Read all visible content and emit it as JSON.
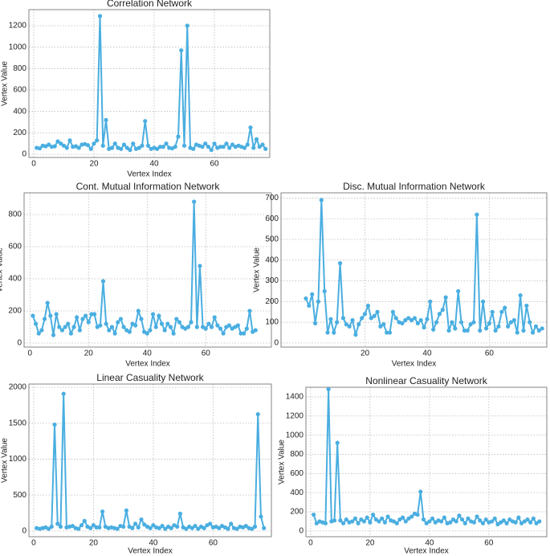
{
  "chart_data": [
    {
      "type": "line",
      "title": "Correlation Network",
      "x_label": "Vertex Index",
      "y_label": "Vertex Value",
      "color": "#4aaee0",
      "grid": true,
      "xlim": [
        -1.6,
        78.4
      ],
      "ylim": [
        -30,
        1350
      ],
      "xticks": [
        0,
        20,
        40,
        60
      ],
      "yticks": [
        0,
        200,
        400,
        600,
        800,
        1000,
        1200
      ],
      "x": [
        1,
        2,
        3,
        4,
        5,
        6,
        7,
        8,
        9,
        10,
        11,
        12,
        13,
        14,
        15,
        16,
        17,
        18,
        19,
        20,
        21,
        22,
        23,
        24,
        25,
        26,
        27,
        28,
        29,
        30,
        31,
        32,
        33,
        34,
        35,
        36,
        37,
        38,
        39,
        40,
        41,
        42,
        43,
        44,
        45,
        46,
        47,
        48,
        49,
        50,
        51,
        52,
        53,
        54,
        55,
        56,
        57,
        58,
        59,
        60,
        61,
        62,
        63,
        64,
        65,
        66,
        67,
        68,
        69,
        70,
        71,
        72,
        73,
        74,
        75,
        76,
        77
      ],
      "values": [
        60,
        55,
        80,
        75,
        90,
        70,
        75,
        120,
        100,
        80,
        60,
        130,
        70,
        75,
        60,
        90,
        95,
        85,
        50,
        100,
        130,
        1290,
        80,
        320,
        50,
        60,
        100,
        60,
        50,
        90,
        60,
        40,
        100,
        50,
        60,
        80,
        310,
        80,
        50,
        60,
        50,
        70,
        70,
        100,
        60,
        55,
        70,
        165,
        970,
        80,
        1200,
        60,
        50,
        90,
        80,
        70,
        100,
        70,
        40,
        100,
        60,
        70,
        70,
        100,
        60,
        90,
        70,
        80,
        70,
        60,
        90,
        250,
        60,
        140,
        70,
        90,
        50
      ]
    },
    {
      "type": "line",
      "title": "Cont. Mutual Information Network",
      "x_label": "Vertex Index",
      "y_label": "Vertex Value",
      "color": "#4aaee0",
      "grid": true,
      "xlim": [
        -2,
        82.4
      ],
      "ylim": [
        -25,
        935
      ],
      "xticks": [
        0,
        20,
        40,
        60
      ],
      "yticks": [
        0,
        200,
        400,
        600,
        800
      ],
      "x": [
        1,
        2,
        3,
        4,
        5,
        6,
        7,
        8,
        9,
        10,
        11,
        12,
        13,
        14,
        15,
        16,
        17,
        18,
        19,
        20,
        21,
        22,
        23,
        24,
        25,
        26,
        27,
        28,
        29,
        30,
        31,
        32,
        33,
        34,
        35,
        36,
        37,
        38,
        39,
        40,
        41,
        42,
        43,
        44,
        45,
        46,
        47,
        48,
        49,
        50,
        51,
        52,
        53,
        54,
        55,
        56,
        57,
        58,
        59,
        60,
        61,
        62,
        63,
        64,
        65,
        66,
        67,
        68,
        69,
        70,
        71,
        72,
        73,
        74,
        75,
        76,
        77
      ],
      "values": [
        170,
        120,
        60,
        80,
        150,
        250,
        170,
        50,
        180,
        100,
        80,
        100,
        120,
        60,
        100,
        160,
        80,
        150,
        170,
        130,
        180,
        180,
        100,
        110,
        385,
        120,
        80,
        100,
        60,
        130,
        150,
        100,
        80,
        70,
        120,
        110,
        200,
        150,
        70,
        60,
        80,
        180,
        100,
        170,
        120,
        80,
        120,
        100,
        60,
        150,
        130,
        100,
        90,
        100,
        130,
        880,
        100,
        480,
        100,
        90,
        120,
        100,
        160,
        110,
        90,
        60,
        100,
        110,
        90,
        100,
        110,
        60,
        60,
        90,
        200,
        70,
        80
      ]
    },
    {
      "type": "line",
      "title": "Disc. Mutual Information Network",
      "x_label": "Vertex Index",
      "y_label": "Vertex Value",
      "color": "#4aaee0",
      "grid": true,
      "xlim": [
        -7,
        78.5
      ],
      "ylim": [
        -20,
        725
      ],
      "xticks": [
        20,
        40,
        60
      ],
      "yticks": [
        0,
        100,
        200,
        300,
        400,
        500,
        600,
        700
      ],
      "x": [
        1,
        2,
        3,
        4,
        5,
        6,
        7,
        8,
        9,
        10,
        11,
        12,
        13,
        14,
        15,
        16,
        17,
        18,
        19,
        20,
        21,
        22,
        23,
        24,
        25,
        26,
        27,
        28,
        29,
        30,
        31,
        32,
        33,
        34,
        35,
        36,
        37,
        38,
        39,
        40,
        41,
        42,
        43,
        44,
        45,
        46,
        47,
        48,
        49,
        50,
        51,
        52,
        53,
        54,
        55,
        56,
        57,
        58,
        59,
        60,
        61,
        62,
        63,
        64,
        65,
        66,
        67,
        68,
        69,
        70,
        71,
        72,
        73,
        74,
        75,
        76,
        77
      ],
      "values": [
        215,
        180,
        235,
        95,
        200,
        690,
        250,
        50,
        115,
        50,
        100,
        385,
        120,
        90,
        80,
        110,
        40,
        90,
        120,
        140,
        180,
        120,
        130,
        150,
        80,
        90,
        50,
        50,
        150,
        120,
        100,
        95,
        110,
        120,
        110,
        120,
        95,
        110,
        75,
        115,
        200,
        65,
        100,
        140,
        160,
        220,
        60,
        100,
        70,
        250,
        100,
        60,
        60,
        90,
        100,
        620,
        60,
        200,
        70,
        95,
        150,
        60,
        80,
        150,
        170,
        80,
        100,
        110,
        50,
        230,
        60,
        180,
        100,
        50,
        80,
        60,
        70
      ]
    },
    {
      "type": "line",
      "title": "Linear Casuality Network",
      "x_label": "Vertex Index",
      "y_label": "Vertex Value",
      "color": "#4aaee0",
      "grid": true,
      "xlim": [
        -1.6,
        79.5
      ],
      "ylim": [
        -80,
        2045
      ],
      "xticks": [
        0,
        20,
        40,
        60
      ],
      "yticks": [
        0,
        500,
        1000,
        1500,
        2000
      ],
      "x": [
        1,
        2,
        3,
        4,
        5,
        6,
        7,
        8,
        9,
        10,
        11,
        12,
        13,
        14,
        15,
        16,
        17,
        18,
        19,
        20,
        21,
        22,
        23,
        24,
        25,
        26,
        27,
        28,
        29,
        30,
        31,
        32,
        33,
        34,
        35,
        36,
        37,
        38,
        39,
        40,
        41,
        42,
        43,
        44,
        45,
        46,
        47,
        48,
        49,
        50,
        51,
        52,
        53,
        54,
        55,
        56,
        57,
        58,
        59,
        60,
        61,
        62,
        63,
        64,
        65,
        66,
        67,
        68,
        69,
        70,
        71,
        72,
        73,
        74,
        75,
        76,
        77
      ],
      "values": [
        40,
        30,
        40,
        50,
        30,
        60,
        1480,
        100,
        60,
        1910,
        50,
        60,
        70,
        40,
        30,
        80,
        140,
        60,
        40,
        80,
        50,
        50,
        270,
        60,
        40,
        50,
        40,
        30,
        70,
        60,
        285,
        60,
        40,
        100,
        50,
        160,
        90,
        60,
        40,
        80,
        50,
        40,
        70,
        30,
        60,
        40,
        80,
        60,
        240,
        50,
        30,
        60,
        40,
        70,
        30,
        60,
        40,
        80,
        100,
        50,
        60,
        40,
        70,
        50,
        30,
        100,
        40,
        30,
        60,
        50,
        70,
        40,
        30,
        60,
        1625,
        200,
        40
      ]
    },
    {
      "type": "line",
      "title": "Nonlinear Casuality Network",
      "x_label": "Vertex Index",
      "y_label": "Vertex Value",
      "color": "#4aaee0",
      "grid": true,
      "xlim": [
        -1.6,
        79.5
      ],
      "ylim": [
        -60,
        1500
      ],
      "xticks": [
        0,
        20,
        40,
        60
      ],
      "yticks": [
        0,
        200,
        400,
        600,
        800,
        1000,
        1200,
        1400
      ],
      "x": [
        1,
        2,
        3,
        4,
        5,
        6,
        7,
        8,
        9,
        10,
        11,
        12,
        13,
        14,
        15,
        16,
        17,
        18,
        19,
        20,
        21,
        22,
        23,
        24,
        25,
        26,
        27,
        28,
        29,
        30,
        31,
        32,
        33,
        34,
        35,
        36,
        37,
        38,
        39,
        40,
        41,
        42,
        43,
        44,
        45,
        46,
        47,
        48,
        49,
        50,
        51,
        52,
        53,
        54,
        55,
        56,
        57,
        58,
        59,
        60,
        61,
        62,
        63,
        64,
        65,
        66,
        67,
        68,
        69,
        70,
        71,
        72,
        73,
        74,
        75,
        76,
        77
      ],
      "values": [
        170,
        80,
        100,
        90,
        80,
        1480,
        100,
        110,
        920,
        110,
        80,
        120,
        90,
        100,
        130,
        80,
        120,
        100,
        140,
        90,
        170,
        120,
        100,
        130,
        90,
        150,
        110,
        100,
        80,
        120,
        140,
        100,
        130,
        150,
        180,
        170,
        410,
        120,
        80,
        100,
        130,
        90,
        110,
        100,
        140,
        80,
        90,
        120,
        100,
        160,
        120,
        80,
        130,
        100,
        90,
        150,
        110,
        80,
        120,
        90,
        100,
        130,
        70,
        90,
        110,
        80,
        120,
        100,
        90,
        140,
        80,
        100,
        120,
        90,
        130,
        80,
        100
      ]
    }
  ]
}
